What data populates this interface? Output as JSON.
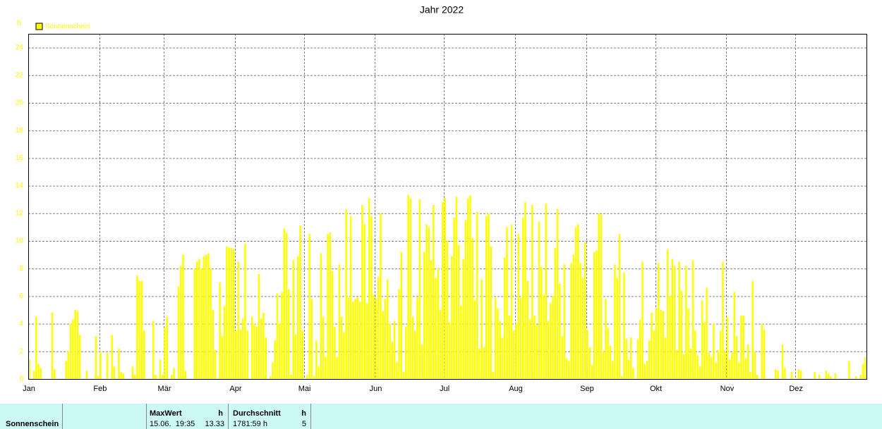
{
  "chart_data": {
    "type": "bar",
    "title": "Jahr 2022",
    "y_label": "h",
    "legend_position": "top-left",
    "series_name": "Sonnenschein",
    "color": "#ffff00",
    "grid": true,
    "categories": [
      "Jan",
      "Feb",
      "Mär",
      "Apr",
      "Mai",
      "Jun",
      "Jul",
      "Aug",
      "Sep",
      "Okt",
      "Nov",
      "Dez"
    ],
    "values": [
      [
        1.4,
        0,
        0.6,
        4.5,
        1.1,
        0.8,
        0,
        0,
        0,
        0,
        4.8,
        0.7,
        0,
        0,
        0,
        0,
        1.3,
        2,
        4,
        4.3,
        5,
        4.9,
        3.2,
        0,
        0,
        0.6,
        0,
        0,
        0,
        3.1,
        0.2
      ],
      [
        2,
        0,
        0,
        1.9,
        0,
        3.2,
        0.9,
        0,
        2.2,
        0.5,
        0.4,
        0,
        0,
        0,
        0.9,
        0.3,
        7.5,
        7.1,
        7.1,
        3.5,
        0,
        0,
        0,
        4.2,
        0.3,
        0,
        1.4,
        0.3
      ],
      [
        3.7,
        4.5,
        0,
        0.3,
        0.8,
        0,
        6.7,
        8.2,
        9,
        0.6,
        0,
        0,
        0,
        8,
        8.5,
        8.7,
        8,
        8.9,
        9,
        9.1,
        8,
        5,
        2.1,
        0,
        7,
        3.1,
        5.3,
        9.6,
        9.5,
        9.5,
        9.4
      ],
      [
        3.5,
        8.5,
        3.6,
        4.4,
        9.8,
        3.5,
        0,
        4.5,
        4,
        3.8,
        7.6,
        4.4,
        4.8,
        3,
        0,
        0.2,
        1.2,
        2.8,
        6.2,
        4,
        6.3,
        10.9,
        10.6,
        6.5,
        0.3,
        8.6,
        3.2,
        8.9,
        11.1,
        3.5
      ],
      [
        0,
        0.3,
        10.5,
        5.8,
        0.2,
        2.8,
        0.9,
        9.1,
        4.5,
        1.6,
        10.5,
        10.6,
        7.8,
        3.8,
        1.6,
        8.3,
        4.5,
        3.4,
        12.3,
        5.9,
        11.8,
        5.6,
        5.8,
        5.9,
        5.6,
        12.6,
        11.2,
        5.5,
        13.1,
        11.8,
        6.1
      ],
      [
        5.8,
        7.4,
        12,
        4.9,
        5.8,
        7.2,
        4,
        2.7,
        4.2,
        1.2,
        6.5,
        9.2,
        0.5,
        3.8,
        13.33,
        13.1,
        4.5,
        3.5,
        5.9,
        13,
        2.5,
        9.2,
        11.2,
        11,
        8.6,
        12.6,
        7.3,
        8,
        5,
        12.8
      ],
      [
        13.1,
        10,
        4.1,
        8.9,
        11.7,
        13.2,
        9.7,
        5.3,
        8.7,
        11.5,
        13.1,
        13.3,
        10.2,
        5.7,
        12.1,
        2.2,
        7.2,
        2.3,
        11.8,
        12,
        9.6,
        0.5,
        5.9,
        5.1,
        4.2,
        3,
        8.8,
        11,
        4.6,
        11.2,
        3.5
      ],
      [
        4,
        10.5,
        5.9,
        11.7,
        12.8,
        7.1,
        4.3,
        12.6,
        4.6,
        3.9,
        11.4,
        8.1,
        6.1,
        12.7,
        4.2,
        5.5,
        6,
        9.5,
        12.3,
        6.9,
        3.1,
        8.3,
        1.5,
        1.3,
        8.4,
        9,
        11,
        11.2,
        8.4,
        7.3,
        9.9
      ],
      [
        3.6,
        2.3,
        1,
        9.2,
        9.3,
        12,
        11.9,
        2,
        5.8,
        3.7,
        2.4,
        1.3,
        8.3,
        7.3,
        10.5,
        0.2,
        7.7,
        2.9,
        1.4,
        3,
        0.8,
        0,
        2.9,
        4.3,
        8.5,
        1.1,
        1.3,
        2.8,
        4.8,
        3.5
      ],
      [
        5.1,
        8.4,
        5,
        4.9,
        3,
        9.4,
        6,
        8.7,
        8.2,
        2.1,
        8.5,
        6.4,
        1.8,
        8.2,
        5.1,
        2.2,
        8.6,
        3.5,
        1.7,
        0.9,
        5.7,
        4.1,
        6.6,
        1.9,
        1.6,
        4,
        1.2,
        2.1,
        3.5,
        8.5,
        2
      ],
      [
        4.5,
        1.4,
        1.9,
        6.3,
        3.1,
        1.2,
        4.6,
        4.6,
        1.5,
        2.5,
        0.5,
        7.1,
        2,
        0.3,
        0,
        4,
        3.6,
        0,
        0,
        0,
        0,
        0.7,
        0.6,
        0,
        2.5,
        0.8,
        0,
        0,
        0.5,
        0
      ],
      [
        0,
        0.7,
        0.6,
        0,
        0,
        0,
        0,
        0,
        0.5,
        0,
        0.3,
        0,
        0,
        0.6,
        0.4,
        0.2,
        0,
        0.4,
        0,
        0,
        0,
        0,
        0,
        1.3,
        0,
        0,
        0.2,
        0,
        0.3,
        1.1,
        1.6
      ]
    ],
    "ylim": [
      0,
      25
    ],
    "yticks": [
      0,
      2,
      4,
      6,
      8,
      10,
      12,
      14,
      16,
      18,
      20,
      22,
      24
    ]
  },
  "summary": {
    "label": "Sonnenschein",
    "max_header": "MaxWert",
    "max_unit": "h",
    "max_time": "15.06.  19:35",
    "max_value": "13.33",
    "avg_header": "Durchschnitt",
    "avg_unit": "h",
    "avg_total": "1781:59 h",
    "avg_value": "5"
  }
}
